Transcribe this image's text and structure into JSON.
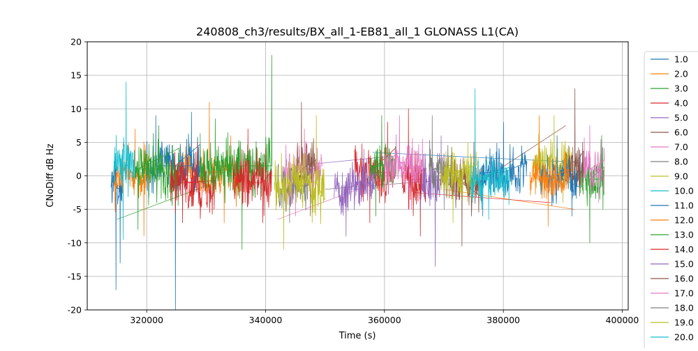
{
  "chart_data": {
    "type": "line",
    "title": "240808_ch3/results/BX_all_1-EB81_all_1 GLONASS L1(CA)",
    "xlabel": "Time (s)",
    "ylabel": "CNoDiff dB Hz",
    "xlim": [
      310000,
      401000
    ],
    "ylim": [
      -20,
      20
    ],
    "xticks": [
      320000,
      340000,
      360000,
      380000,
      400000
    ],
    "yticks": [
      -20,
      -15,
      -10,
      -5,
      0,
      5,
      10,
      15,
      20
    ],
    "grid": true,
    "legend": {
      "placement": "outside-right",
      "entries": [
        "1.0",
        "2.0",
        "3.0",
        "4.0",
        "5.0",
        "6.0",
        "7.0",
        "8.0",
        "9.0",
        "10.0",
        "11.0",
        "12.0",
        "13.0",
        "14.0",
        "15.0",
        "16.0",
        "17.0",
        "18.0",
        "19.0",
        "20.0"
      ]
    },
    "series": [
      {
        "name": "1.0",
        "color": "#1f77b4",
        "x_range": [
          320000,
          329000
        ],
        "center": 1.5,
        "spread": 3.5,
        "spikes": [
          [
            324800,
            -20
          ],
          [
            321500,
            9
          ],
          [
            327500,
            9.5
          ]
        ]
      },
      {
        "name": "2.0",
        "color": "#ff7f0e",
        "x_range": [
          314500,
          320500
        ],
        "center": 0.0,
        "spread": 3.0,
        "spikes": [
          [
            318000,
            7
          ],
          [
            319500,
            -9
          ]
        ]
      },
      {
        "name": "3.0",
        "color": "#2ca02c",
        "x_range": [
          318000,
          325500
        ],
        "center": 1.0,
        "spread": 3.5,
        "spikes": [
          [
            318500,
            -8
          ],
          [
            322000,
            7.5
          ]
        ]
      },
      {
        "name": "4.0",
        "color": "#d62728",
        "x_range": [
          324000,
          331500
        ],
        "center": -1.0,
        "spread": 3.5,
        "spikes": [
          [
            326000,
            -7
          ],
          [
            328500,
            5
          ]
        ]
      },
      {
        "name": "5.0",
        "color": "#9467bd",
        "x_range": [
          351500,
          358500
        ],
        "center": -2.0,
        "spread": 3.0,
        "spikes": [
          [
            353500,
            -9
          ],
          [
            356500,
            4
          ]
        ]
      },
      {
        "name": "6.0",
        "color": "#8c564b",
        "x_range": [
          371000,
          376500
        ],
        "center": -1.0,
        "spread": 3.5,
        "spikes": [
          [
            373000,
            -10.5
          ],
          [
            375000,
            5
          ]
        ]
      },
      {
        "name": "7.0",
        "color": "#e377c2",
        "x_range": [
          360000,
          366500
        ],
        "center": 2.0,
        "spread": 3.5,
        "spikes": [
          [
            362500,
            9
          ],
          [
            364500,
            -5
          ]
        ]
      },
      {
        "name": "8.0",
        "color": "#7f7f7f",
        "x_range": [
          342000,
          347500
        ],
        "center": -1.5,
        "spread": 3.0,
        "spikes": [
          [
            344000,
            -7
          ],
          [
            347000,
            3
          ]
        ]
      },
      {
        "name": "9.0",
        "color": "#bcbd22",
        "x_range": [
          341500,
          350000
        ],
        "center": -1.0,
        "spread": 3.5,
        "spikes": [
          [
            348500,
            9
          ],
          [
            343000,
            -11
          ]
        ]
      },
      {
        "name": "10.0",
        "color": "#17becf",
        "x_range": [
          314500,
          318000
        ],
        "center": 2.0,
        "spread": 3.0,
        "spikes": [
          [
            316500,
            14
          ],
          [
            316000,
            -9.5
          ]
        ]
      },
      {
        "name": "11.0",
        "color": "#1f77b4",
        "x_range": [
          376000,
          384000
        ],
        "center": 0.5,
        "spread": 3.0,
        "spikes": [
          [
            380000,
            8
          ],
          [
            376500,
            -6
          ]
        ]
      },
      {
        "name": "12.0",
        "color": "#ff7f0e",
        "x_range": [
          384500,
          391000
        ],
        "center": -0.5,
        "spread": 2.5,
        "spikes": [
          [
            387500,
            -7.5
          ],
          [
            386000,
            9
          ]
        ]
      },
      {
        "name": "13.0",
        "color": "#2ca02c",
        "x_range": [
          329000,
          341000
        ],
        "center": 1.5,
        "spread": 3.5,
        "spikes": [
          [
            341000,
            18
          ],
          [
            336000,
            -11
          ],
          [
            331500,
            8.5
          ]
        ]
      },
      {
        "name": "14.0",
        "color": "#d62728",
        "x_range": [
          334500,
          341000
        ],
        "center": -1.0,
        "spread": 3.5,
        "spikes": [
          [
            339500,
            -7
          ],
          [
            337000,
            7
          ]
        ]
      },
      {
        "name": "15.0",
        "color": "#9467bd",
        "x_range": [
          366000,
          370500
        ],
        "center": -0.5,
        "spread": 3.5,
        "spikes": [
          [
            368500,
            -13.5
          ],
          [
            369500,
            6
          ]
        ]
      },
      {
        "name": "16.0",
        "color": "#8c564b",
        "x_range": [
          391000,
          393500
        ],
        "center": 1.5,
        "spread": 3.5,
        "spikes": [
          [
            392000,
            13
          ],
          [
            392800,
            -3
          ]
        ]
      },
      {
        "name": "17.0",
        "color": "#e377c2",
        "x_range": [
          393500,
          397000
        ],
        "center": 1.0,
        "spread": 3.0,
        "spikes": [
          [
            394500,
            7.5
          ],
          [
            396000,
            -4
          ]
        ]
      },
      {
        "name": "18.0",
        "color": "#7f7f7f",
        "x_range": [
          367500,
          371500
        ],
        "center": 1.0,
        "spread": 3.0,
        "spikes": [
          [
            368000,
            9
          ],
          [
            370000,
            -5
          ]
        ]
      },
      {
        "name": "19.0",
        "color": "#bcbd22",
        "x_range": [
          369500,
          375500
        ],
        "center": 0.5,
        "spread": 3.0,
        "spikes": [
          [
            371500,
            -7
          ],
          [
            374000,
            5
          ]
        ]
      },
      {
        "name": "20.0",
        "color": "#17becf",
        "x_range": [
          374500,
          381000
        ],
        "center": -0.5,
        "spread": 3.0,
        "spikes": [
          [
            375200,
            13
          ],
          [
            377500,
            -6.5
          ]
        ]
      }
    ],
    "extra_series": [
      {
        "color": "#1f77b4",
        "x_range": [
          314000,
          316000
        ],
        "center": -1.5,
        "spread": 3.5,
        "spikes": [
          [
            314800,
            -17
          ],
          [
            315500,
            -13
          ]
        ]
      },
      {
        "color": "#ff7f0e",
        "x_range": [
          325500,
          336000
        ],
        "center": 0.5,
        "spread": 3.0,
        "spikes": [
          [
            330500,
            11
          ],
          [
            333000,
            -7
          ]
        ]
      },
      {
        "color": "#d62728",
        "x_range": [
          355000,
          362000
        ],
        "center": 0.5,
        "spread": 3.5,
        "spikes": [
          [
            357500,
            -7
          ],
          [
            360500,
            8
          ]
        ]
      },
      {
        "color": "#2ca02c",
        "x_range": [
          357500,
          362000
        ],
        "center": 1.5,
        "spread": 3.0,
        "spikes": [
          [
            359500,
            9
          ],
          [
            358500,
            -6
          ]
        ]
      },
      {
        "color": "#bcbd22",
        "x_range": [
          385000,
          391500
        ],
        "center": 1.5,
        "spread": 3.0,
        "spikes": [
          [
            388500,
            9
          ],
          [
            390000,
            -4
          ]
        ]
      },
      {
        "color": "#1f77b4",
        "x_range": [
          386000,
          393000
        ],
        "center": 0.0,
        "spread": 3.0,
        "spikes": [
          [
            389000,
            6
          ],
          [
            391500,
            -6
          ]
        ]
      },
      {
        "color": "#2ca02c",
        "x_range": [
          393000,
          397000
        ],
        "center": -0.5,
        "spread": 3.0,
        "spikes": [
          [
            394500,
            -10
          ],
          [
            396500,
            6
          ]
        ]
      },
      {
        "color": "#d62728",
        "x_range": [
          363000,
          367000
        ],
        "center": -0.5,
        "spread": 3.5,
        "spikes": [
          [
            364000,
            10
          ],
          [
            366000,
            -9
          ]
        ]
      },
      {
        "color": "#e377c2",
        "x_range": [
          343000,
          349500
        ],
        "center": 0.5,
        "spread": 3.0,
        "spikes": [
          [
            346500,
            7
          ],
          [
            345000,
            -6
          ]
        ]
      },
      {
        "color": "#8c564b",
        "x_range": [
          345000,
          348500
        ],
        "center": 1.0,
        "spread": 3.0,
        "spikes": [
          [
            346000,
            11
          ],
          [
            347500,
            -6
          ]
        ]
      }
    ],
    "connectors": [
      {
        "color": "#2ca02c",
        "from": [
          315000,
          -6.5
        ],
        "to": [
          330000,
          -1.5
        ]
      },
      {
        "color": "#e377c2",
        "from": [
          342000,
          -6.5
        ],
        "to": [
          360000,
          -0.5
        ]
      },
      {
        "color": "#9467bd",
        "from": [
          345000,
          1.5
        ],
        "to": [
          362000,
          3.0
        ]
      },
      {
        "color": "#1f77b4",
        "from": [
          358000,
          3.5
        ],
        "to": [
          393000,
          2.0
        ]
      },
      {
        "color": "#ff7f0e",
        "from": [
          370000,
          -2.0
        ],
        "to": [
          392000,
          -5.0
        ]
      },
      {
        "color": "#8c564b",
        "from": [
          375000,
          -1.5
        ],
        "to": [
          390500,
          7.5
        ]
      },
      {
        "color": "#7f7f7f",
        "from": [
          350000,
          -2.0
        ],
        "to": [
          372000,
          -0.5
        ]
      },
      {
        "color": "#d62728",
        "from": [
          365000,
          -2.5
        ],
        "to": [
          388000,
          -4.0
        ]
      }
    ]
  }
}
